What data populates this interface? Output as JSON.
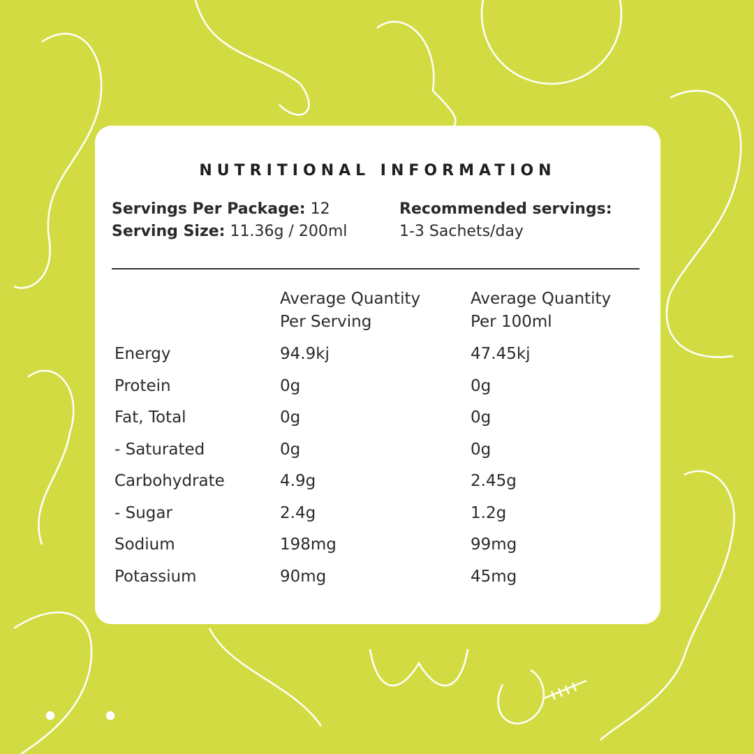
{
  "title": "NUTRITIONAL INFORMATION",
  "servings_per_package_label": "Servings Per Package:",
  "servings_per_package_value": "12",
  "serving_size_label": "Serving Size:",
  "serving_size_value": "11.36g / 200ml",
  "recommended_label": "Recommended servings:",
  "recommended_value": "1-3 Sachets/day",
  "columns": [
    {
      "line1": "Average Quantity",
      "line2": "Per Serving"
    },
    {
      "line1": "Average Quantity",
      "line2": "Per 100ml"
    }
  ],
  "rows": [
    {
      "name": "Energy",
      "per_serving": "94.9kj",
      "per_100ml": "47.45kj"
    },
    {
      "name": "Protein",
      "per_serving": "0g",
      "per_100ml": "0g"
    },
    {
      "name": "Fat, Total",
      "per_serving": "0g",
      "per_100ml": "0g"
    },
    {
      "name": "- Saturated",
      "per_serving": "0g",
      "per_100ml": "0g"
    },
    {
      "name": "Carbohydrate",
      "per_serving": "4.9g",
      "per_100ml": "2.45g"
    },
    {
      "name": "- Sugar",
      "per_serving": "2.4g",
      "per_100ml": "1.2g"
    },
    {
      "name": "Sodium",
      "per_serving": "198mg",
      "per_100ml": "99mg"
    },
    {
      "name": "Potassium",
      "per_serving": "90mg",
      "per_100ml": "45mg"
    }
  ],
  "colors": {
    "background": "#d2dc42",
    "card": "#ffffff",
    "text": "#2a2a2a",
    "line_art": "#ffffff"
  }
}
